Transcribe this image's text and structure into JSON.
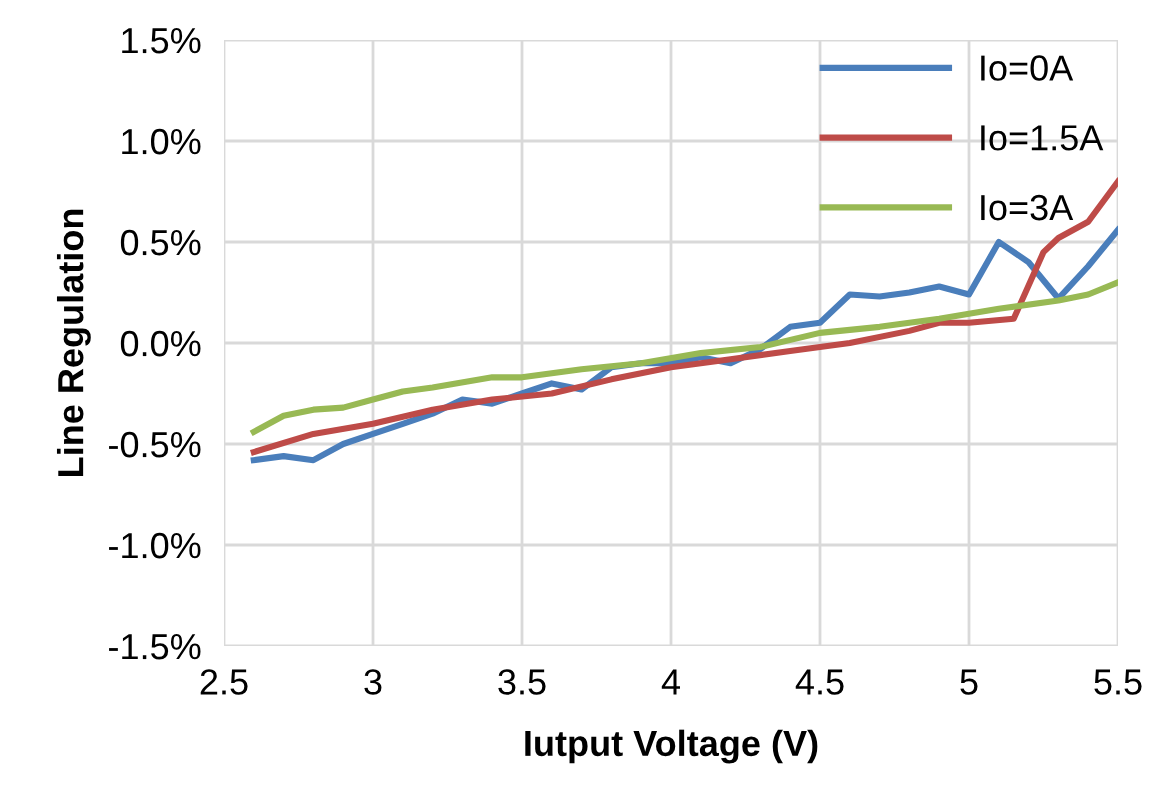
{
  "chart_data": {
    "type": "line",
    "xlabel": "Iutput Voltage (V)",
    "ylabel": "Line Regulation",
    "xlim": [
      2.5,
      5.5
    ],
    "xticks": [
      2.5,
      3,
      3.5,
      4,
      4.5,
      5,
      5.5
    ],
    "ylim": [
      -1.5,
      1.5
    ],
    "yticks": [
      {
        "value": -1.5,
        "label": "-1.5%"
      },
      {
        "value": -1.0,
        "label": "-1.0%"
      },
      {
        "value": -0.5,
        "label": "-0.5%"
      },
      {
        "value": 0,
        "label": "0.0%"
      },
      {
        "value": 0.5,
        "label": "0.5%"
      },
      {
        "value": 1.0,
        "label": "1.0%"
      },
      {
        "value": 1.5,
        "label": "1.5%"
      }
    ],
    "grid": true,
    "legend": "top right",
    "series": [
      {
        "name": "Io=0A",
        "color": "#4a7ebb",
        "x": [
          2.6,
          2.7,
          2.8,
          2.9,
          3.0,
          3.1,
          3.2,
          3.3,
          3.4,
          3.5,
          3.6,
          3.7,
          3.8,
          3.9,
          4.0,
          4.1,
          4.2,
          4.3,
          4.4,
          4.5,
          4.6,
          4.7,
          4.8,
          4.9,
          5.0,
          5.1,
          5.2,
          5.3,
          5.4,
          5.5
        ],
        "values": [
          -0.58,
          -0.56,
          -0.58,
          -0.5,
          -0.45,
          -0.4,
          -0.35,
          -0.28,
          -0.3,
          -0.25,
          -0.2,
          -0.23,
          -0.12,
          -0.1,
          -0.1,
          -0.07,
          -0.1,
          -0.03,
          0.08,
          0.1,
          0.24,
          0.23,
          0.25,
          0.28,
          0.24,
          0.5,
          0.4,
          0.22,
          0.38,
          0.56
        ]
      },
      {
        "name": "Io=1.5A",
        "color": "#be4b48",
        "x": [
          2.6,
          2.8,
          3.0,
          3.2,
          3.4,
          3.6,
          3.8,
          4.0,
          4.2,
          4.4,
          4.6,
          4.8,
          4.9,
          5.0,
          5.15,
          5.25,
          5.3,
          5.4,
          5.5
        ],
        "values": [
          -0.54,
          -0.45,
          -0.4,
          -0.33,
          -0.28,
          -0.25,
          -0.18,
          -0.12,
          -0.08,
          -0.04,
          0.0,
          0.06,
          0.1,
          0.1,
          0.12,
          0.45,
          0.52,
          0.6,
          0.8
        ]
      },
      {
        "name": "Io=3A",
        "color": "#98b954",
        "x": [
          2.6,
          2.7,
          2.8,
          2.9,
          3.0,
          3.1,
          3.2,
          3.4,
          3.5,
          3.7,
          3.9,
          4.1,
          4.3,
          4.5,
          4.7,
          4.9,
          5.1,
          5.3,
          5.4,
          5.5
        ],
        "values": [
          -0.44,
          -0.36,
          -0.33,
          -0.32,
          -0.28,
          -0.24,
          -0.22,
          -0.17,
          -0.17,
          -0.13,
          -0.1,
          -0.05,
          -0.02,
          0.05,
          0.08,
          0.12,
          0.17,
          0.21,
          0.24,
          0.3
        ]
      }
    ]
  }
}
